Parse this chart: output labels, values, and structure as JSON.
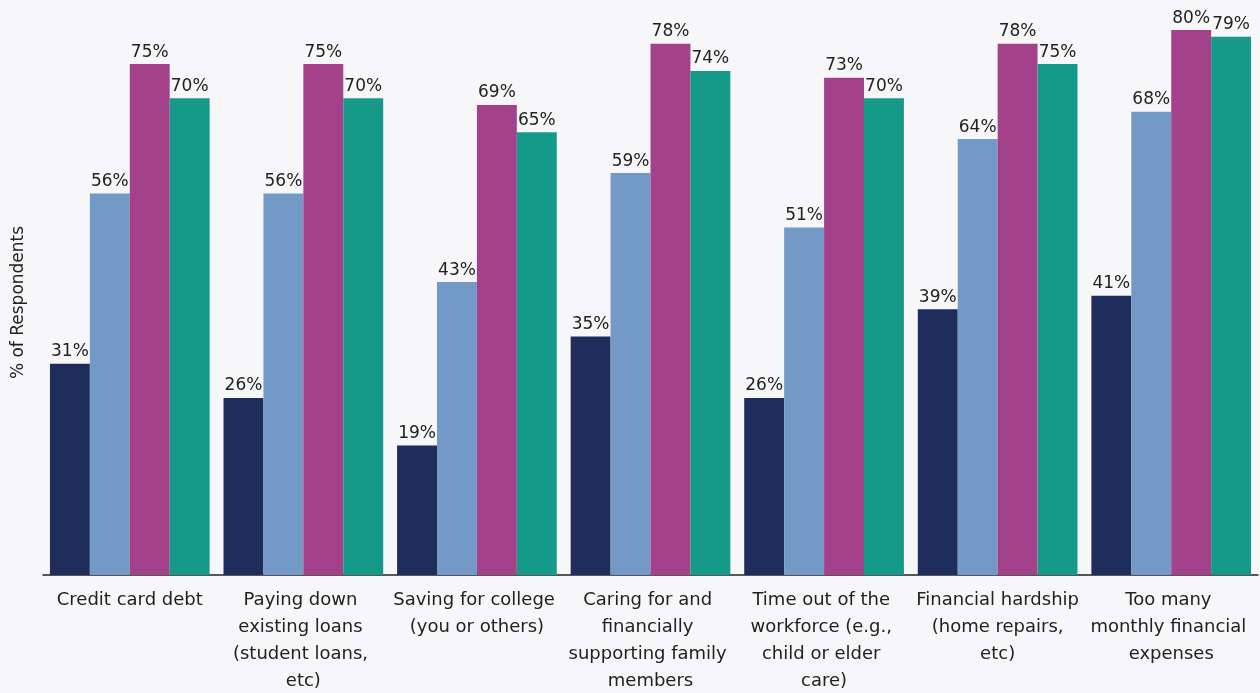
{
  "chart_data": {
    "type": "bar",
    "ylabel": "% of Respondents",
    "categories": [
      "Credit card debt",
      "Paying down existing loans (student loans, etc)",
      "Saving for college (you or others)",
      "Caring for and financially supporting family members",
      "Time out of the workforce (e.g., child or elder care)",
      "Financial hardship (home repairs, etc)",
      "Too many monthly financial expenses"
    ],
    "series": [
      {
        "color": "#1f2d5c",
        "values": [
          31,
          26,
          19,
          35,
          26,
          39,
          41
        ],
        "value_labels": [
          "31%",
          "26%",
          "19%",
          "35%",
          "26%",
          "39%",
          "41%"
        ]
      },
      {
        "color": "#7399c6",
        "values": [
          56,
          56,
          43,
          59,
          51,
          64,
          68
        ],
        "value_labels": [
          "56%",
          "56%",
          "43%",
          "59%",
          "51%",
          "64%",
          "68%"
        ]
      },
      {
        "color": "#a3428a",
        "values": [
          75,
          75,
          69,
          78,
          73,
          78,
          80
        ],
        "value_labels": [
          "75%",
          "75%",
          "69%",
          "78%",
          "73%",
          "78%",
          "80%"
        ]
      },
      {
        "color": "#159a8a",
        "values": [
          70,
          70,
          65,
          74,
          70,
          75,
          79
        ],
        "value_labels": [
          "70%",
          "70%",
          "65%",
          "74%",
          "70%",
          "75%",
          "79%"
        ]
      }
    ],
    "grid": false
  }
}
